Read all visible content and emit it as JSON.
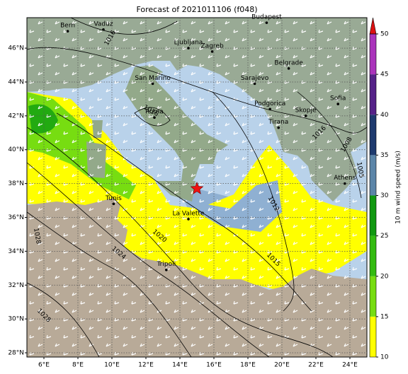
{
  "title": "Forecast of 2021011106 (f048)",
  "lon_range": [
    5,
    25
  ],
  "lat_range": [
    27.75,
    47.8
  ],
  "lon_ticks": [
    {
      "value": 6,
      "label": "6°E"
    },
    {
      "value": 8,
      "label": "8°E"
    },
    {
      "value": 10,
      "label": "10°E"
    },
    {
      "value": 12,
      "label": "12°E"
    },
    {
      "value": 14,
      "label": "14°E"
    },
    {
      "value": 16,
      "label": "16°E"
    },
    {
      "value": 18,
      "label": "18°E"
    },
    {
      "value": 20,
      "label": "20°E"
    },
    {
      "value": 22,
      "label": "22°E"
    },
    {
      "value": 24,
      "label": "24°E"
    }
  ],
  "lat_ticks": [
    {
      "value": 28,
      "label": "28°N"
    },
    {
      "value": 30,
      "label": "30°N"
    },
    {
      "value": 32,
      "label": "32°N"
    },
    {
      "value": 34,
      "label": "34°N"
    },
    {
      "value": 36,
      "label": "36°N"
    },
    {
      "value": 38,
      "label": "38°N"
    },
    {
      "value": 40,
      "label": "40°N"
    },
    {
      "value": 42,
      "label": "42°N"
    },
    {
      "value": 44,
      "label": "44°N"
    },
    {
      "value": 46,
      "label": "46°N"
    }
  ],
  "cities": [
    {
      "name": "Bern",
      "lon": 7.4,
      "lat": 47.0
    },
    {
      "name": "Vaduz",
      "lon": 9.5,
      "lat": 47.1
    },
    {
      "name": "Budapest",
      "lon": 19.1,
      "lat": 47.5
    },
    {
      "name": "Ljubljana",
      "lon": 14.5,
      "lat": 46.0
    },
    {
      "name": "Zagreb",
      "lon": 15.9,
      "lat": 45.8
    },
    {
      "name": "San Marino",
      "lon": 12.4,
      "lat": 43.9
    },
    {
      "name": "Sarajevo",
      "lon": 18.4,
      "lat": 43.9
    },
    {
      "name": "Belgrade",
      "lon": 20.4,
      "lat": 44.8
    },
    {
      "name": "Roma",
      "lon": 12.5,
      "lat": 41.9
    },
    {
      "name": "Podgorica",
      "lon": 19.3,
      "lat": 42.4
    },
    {
      "name": "Skopje",
      "lon": 21.4,
      "lat": 42.0
    },
    {
      "name": "Tirana",
      "lon": 19.8,
      "lat": 41.3
    },
    {
      "name": "Sofia",
      "lon": 23.3,
      "lat": 42.7
    },
    {
      "name": "Athens",
      "lon": 23.7,
      "lat": 38.0
    },
    {
      "name": "Tunis",
      "lon": 10.1,
      "lat": 36.8
    },
    {
      "name": "La Valette",
      "lon": 14.5,
      "lat": 35.9
    },
    {
      "name": "Tripoli",
      "lon": 13.2,
      "lat": 32.9
    }
  ],
  "marker": {
    "lon": 15.0,
    "lat": 37.7,
    "color": "#ee1111"
  },
  "isobar_labels": [
    {
      "label": "1016",
      "lon": 9.9,
      "lat": 46.6
    },
    {
      "label": "1016",
      "lon": 12.3,
      "lat": 42.3
    },
    {
      "label": "1016",
      "lon": 22.2,
      "lat": 41.0
    },
    {
      "label": "1008",
      "lon": 23.8,
      "lat": 40.3
    },
    {
      "label": "1005",
      "lon": 24.6,
      "lat": 38.8
    },
    {
      "label": "1012",
      "lon": 19.5,
      "lat": 36.8
    },
    {
      "label": "1020",
      "lon": 12.8,
      "lat": 34.9
    },
    {
      "label": "1024",
      "lon": 10.4,
      "lat": 33.9
    },
    {
      "label": "1028",
      "lon": 5.6,
      "lat": 34.9
    },
    {
      "label": "1015",
      "lon": 19.5,
      "lat": 33.5
    },
    {
      "label": "1028",
      "lon": 6.0,
      "lat": 30.2
    }
  ],
  "colorbar": {
    "label": "10 m wind speed (m/s)",
    "ticks": [
      10,
      15,
      20,
      25,
      30,
      35,
      40,
      45,
      50
    ],
    "colors": [
      "#ffff00",
      "#77dd11",
      "#33bb11",
      "#119911",
      "#5b85a8",
      "#1e3a6e",
      "#552288",
      "#aa33bb"
    ],
    "extend_color": "#dd1111"
  }
}
